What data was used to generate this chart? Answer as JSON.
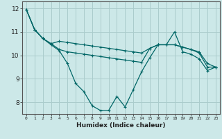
{
  "title": "",
  "xlabel": "Humidex (Indice chaleur)",
  "ylabel": "",
  "background_color": "#cce8e8",
  "grid_color": "#aacccc",
  "line_color": "#006666",
  "xlim": [
    -0.5,
    23.5
  ],
  "ylim": [
    7.5,
    12.3
  ],
  "x_ticks": [
    0,
    1,
    2,
    3,
    4,
    5,
    6,
    7,
    8,
    9,
    10,
    11,
    12,
    13,
    14,
    15,
    16,
    17,
    18,
    19,
    20,
    21,
    22,
    23
  ],
  "y_ticks": [
    8,
    9,
    10,
    11,
    12
  ],
  "series": [
    [
      11.95,
      11.1,
      10.72,
      10.45,
      10.2,
      9.65,
      8.8,
      8.45,
      7.85,
      7.65,
      7.65,
      8.25,
      7.8,
      8.55,
      9.3,
      9.9,
      10.45,
      10.45,
      11.0,
      10.15,
      10.05,
      9.85,
      9.35,
      9.5
    ],
    [
      11.95,
      11.1,
      10.72,
      10.5,
      10.25,
      10.15,
      10.1,
      10.05,
      10.0,
      9.95,
      9.9,
      9.85,
      9.8,
      9.75,
      9.7,
      10.3,
      10.45,
      10.45,
      10.45,
      10.35,
      10.25,
      10.15,
      9.65,
      9.5
    ],
    [
      11.95,
      11.1,
      10.72,
      10.5,
      10.6,
      10.55,
      10.5,
      10.45,
      10.4,
      10.35,
      10.3,
      10.25,
      10.2,
      10.15,
      10.1,
      10.3,
      10.45,
      10.45,
      10.45,
      10.35,
      10.25,
      10.1,
      9.5,
      9.5
    ]
  ]
}
